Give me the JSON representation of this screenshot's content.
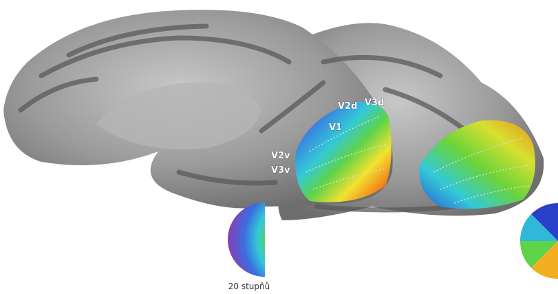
{
  "labels": [
    "V2d",
    "V3d",
    "V1",
    "V2v",
    "V3v"
  ],
  "caption": "20 stupňů"
}
